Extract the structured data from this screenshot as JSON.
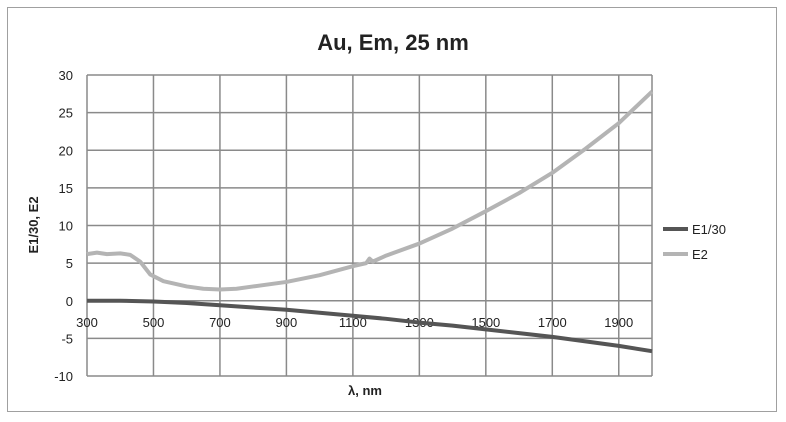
{
  "chart_data": {
    "type": "line",
    "title": "Au, Em, 25 nm",
    "xlabel": "λ, nm",
    "ylabel": "E1/30, E2",
    "xlim": [
      300,
      2000
    ],
    "ylim": [
      -10,
      30
    ],
    "xticks": [
      300,
      500,
      700,
      900,
      1100,
      1300,
      1500,
      1700,
      1900
    ],
    "yticks": [
      -10,
      -5,
      0,
      5,
      10,
      15,
      20,
      25,
      30
    ],
    "grid": true,
    "legend": "right",
    "series": [
      {
        "name": "E1/30",
        "color": "#555555",
        "x": [
          300,
          400,
          500,
          600,
          700,
          800,
          900,
          1000,
          1100,
          1200,
          1300,
          1400,
          1500,
          1600,
          1700,
          1800,
          1900,
          2000
        ],
        "y": [
          0,
          0,
          -0.1,
          -0.3,
          -0.6,
          -0.9,
          -1.2,
          -1.6,
          -2.0,
          -2.4,
          -2.9,
          -3.3,
          -3.8,
          -4.3,
          -4.8,
          -5.4,
          -6.0,
          -6.7
        ]
      },
      {
        "name": "E2",
        "color": "#b4b4b4",
        "x": [
          300,
          330,
          360,
          400,
          430,
          460,
          490,
          530,
          600,
          650,
          700,
          750,
          800,
          900,
          1000,
          1100,
          1140,
          1150,
          1160,
          1200,
          1300,
          1400,
          1500,
          1600,
          1700,
          1800,
          1900,
          2000
        ],
        "y": [
          6.2,
          6.4,
          6.2,
          6.3,
          6.1,
          5.2,
          3.5,
          2.6,
          1.9,
          1.6,
          1.5,
          1.6,
          1.9,
          2.5,
          3.4,
          4.6,
          5.0,
          5.6,
          5.2,
          6.0,
          7.6,
          9.6,
          11.9,
          14.3,
          17.0,
          20.2,
          23.6,
          27.8
        ]
      }
    ]
  }
}
